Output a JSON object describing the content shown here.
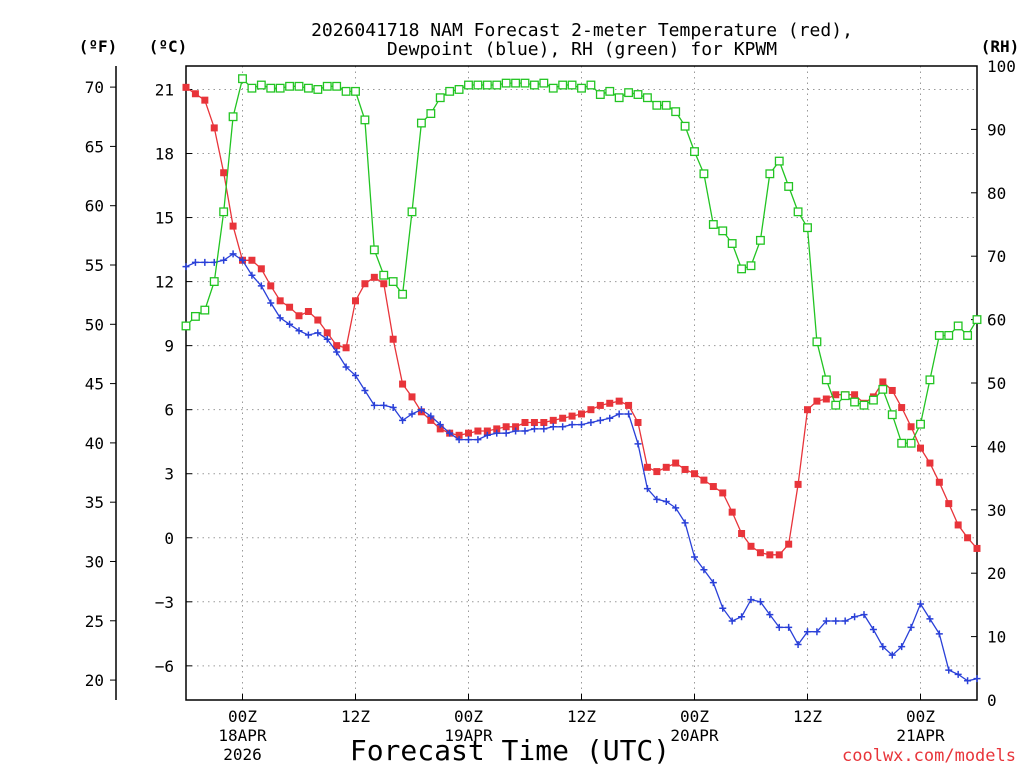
{
  "chart_data": {
    "type": "line",
    "title_line1": "2026041718 NAM Forecast 2-meter Temperature (red),",
    "title_line2": "Dewpoint (blue), RH (green) for KPWM",
    "xlabel": "Forecast Time (UTC)",
    "watermark": "coolwx.com/models",
    "x_hours": [
      0,
      84
    ],
    "x_ticks": [
      {
        "hour": 6,
        "label": "00Z",
        "date": "18APR",
        "year": "2026"
      },
      {
        "hour": 18,
        "label": "12Z"
      },
      {
        "hour": 30,
        "label": "00Z",
        "date": "19APR"
      },
      {
        "hour": 42,
        "label": "12Z"
      },
      {
        "hour": 54,
        "label": "00Z",
        "date": "20APR"
      },
      {
        "hour": 66,
        "label": "12Z"
      },
      {
        "hour": 78,
        "label": "00Z",
        "date": "21APR"
      }
    ],
    "ylim_c": [
      -7.6,
      22.1
    ],
    "yticks_c": [
      "21",
      "18",
      "15",
      "12",
      "9",
      "6",
      "3",
      "0",
      "−3",
      "−6"
    ],
    "yticks_c_values": [
      21,
      18,
      15,
      12,
      9,
      6,
      3,
      0,
      -3,
      -6
    ],
    "yticks_f": [
      "70",
      "65",
      "60",
      "55",
      "50",
      "45",
      "40",
      "35",
      "30",
      "25",
      "20"
    ],
    "yticks_f_values": [
      70,
      65,
      60,
      55,
      50,
      45,
      40,
      35,
      30,
      25,
      20
    ],
    "ylim_rh": [
      0,
      100
    ],
    "yticks_rh": [
      "100",
      "90",
      "80",
      "70",
      "60",
      "50",
      "40",
      "30",
      "20",
      "10",
      "0"
    ],
    "yticks_rh_values": [
      100,
      90,
      80,
      70,
      60,
      50,
      40,
      30,
      20,
      10,
      0
    ],
    "unit_f": "(ºF)",
    "unit_c": "(ºC)",
    "unit_rh": "(RH)",
    "colors": {
      "temperature": "#e8343a",
      "dewpoint": "#2a40d8",
      "rh": "#22c422",
      "grid": "#9a9a9a"
    },
    "series": [
      {
        "name": "Temperature (°C)",
        "key": "temperature",
        "marker": "filled-square",
        "axis": "c",
        "x": [
          0,
          1,
          2,
          3,
          4,
          5,
          6,
          7,
          8,
          9,
          10,
          11,
          12,
          13,
          14,
          15,
          16,
          17,
          18,
          19,
          20,
          21,
          22,
          23,
          24,
          25,
          26,
          27,
          28,
          29,
          30,
          31,
          32,
          33,
          34,
          35,
          36,
          37,
          38,
          39,
          40,
          41,
          42,
          43,
          44,
          45,
          46,
          47,
          48,
          49,
          50,
          51,
          52,
          53,
          54,
          55,
          56,
          57,
          58,
          59,
          60,
          61,
          62,
          63,
          64,
          65,
          66,
          67,
          68,
          69,
          70,
          71,
          72,
          73,
          74,
          75,
          76,
          77,
          78,
          79,
          80,
          81,
          82,
          83,
          84
        ],
        "values": [
          21.1,
          20.8,
          20.5,
          19.2,
          17.1,
          14.6,
          13.0,
          13.0,
          12.6,
          11.8,
          11.1,
          10.8,
          10.4,
          10.6,
          10.2,
          9.6,
          9.0,
          8.9,
          11.1,
          11.9,
          12.2,
          11.9,
          9.3,
          7.2,
          6.6,
          5.9,
          5.5,
          5.1,
          4.9,
          4.8,
          4.9,
          5.0,
          5.0,
          5.1,
          5.2,
          5.2,
          5.4,
          5.4,
          5.4,
          5.5,
          5.6,
          5.7,
          5.8,
          6.0,
          6.2,
          6.3,
          6.4,
          6.2,
          5.4,
          3.3,
          3.1,
          3.3,
          3.5,
          3.2,
          3.0,
          2.7,
          2.4,
          2.1,
          1.2,
          0.2,
          -0.4,
          -0.7,
          -0.8,
          -0.8,
          -0.3,
          2.5,
          6.0,
          6.4,
          6.5,
          6.7,
          6.7,
          6.7,
          6.3,
          6.6,
          7.3,
          6.9,
          6.1,
          5.2,
          4.2,
          3.5,
          2.6,
          1.6,
          0.6,
          0.0,
          -0.5
        ]
      },
      {
        "name": "Dewpoint (°C)",
        "key": "dewpoint",
        "marker": "plus",
        "axis": "c",
        "x": [
          0,
          1,
          2,
          3,
          4,
          5,
          6,
          7,
          8,
          9,
          10,
          11,
          12,
          13,
          14,
          15,
          16,
          17,
          18,
          19,
          20,
          21,
          22,
          23,
          24,
          25,
          26,
          27,
          28,
          29,
          30,
          31,
          32,
          33,
          34,
          35,
          36,
          37,
          38,
          39,
          40,
          41,
          42,
          43,
          44,
          45,
          46,
          47,
          48,
          49,
          50,
          51,
          52,
          53,
          54,
          55,
          56,
          57,
          58,
          59,
          60,
          61,
          62,
          63,
          64,
          65,
          66,
          67,
          68,
          69,
          70,
          71,
          72,
          73,
          74,
          75,
          76,
          77,
          78,
          79,
          80,
          81,
          82,
          83,
          84
        ],
        "values": [
          12.7,
          12.9,
          12.9,
          12.9,
          13.0,
          13.3,
          13.0,
          12.3,
          11.8,
          11.0,
          10.3,
          10.0,
          9.7,
          9.5,
          9.6,
          9.3,
          8.7,
          8.0,
          7.6,
          6.9,
          6.2,
          6.2,
          6.1,
          5.5,
          5.8,
          6.0,
          5.7,
          5.3,
          4.9,
          4.6,
          4.6,
          4.6,
          4.8,
          4.9,
          4.9,
          5.0,
          5.0,
          5.1,
          5.1,
          5.2,
          5.2,
          5.3,
          5.3,
          5.4,
          5.5,
          5.6,
          5.8,
          5.8,
          4.4,
          2.3,
          1.8,
          1.7,
          1.4,
          0.7,
          -0.9,
          -1.5,
          -2.1,
          -3.3,
          -3.9,
          -3.7,
          -2.9,
          -3.0,
          -3.6,
          -4.2,
          -4.2,
          -5.0,
          -4.4,
          -4.4,
          -3.9,
          -3.9,
          -3.9,
          -3.7,
          -3.6,
          -4.3,
          -5.1,
          -5.5,
          -5.1,
          -4.2,
          -3.1,
          -3.8,
          -4.5,
          -6.2,
          -6.4,
          -6.7,
          -6.6
        ]
      },
      {
        "name": "RH (%)",
        "key": "rh",
        "marker": "open-square",
        "axis": "rh",
        "x": [
          0,
          1,
          2,
          3,
          4,
          5,
          6,
          7,
          8,
          9,
          10,
          11,
          12,
          13,
          14,
          15,
          16,
          17,
          18,
          19,
          20,
          21,
          22,
          23,
          24,
          25,
          26,
          27,
          28,
          29,
          30,
          31,
          32,
          33,
          34,
          35,
          36,
          37,
          38,
          39,
          40,
          41,
          42,
          43,
          44,
          45,
          46,
          47,
          48,
          49,
          50,
          51,
          52,
          53,
          54,
          55,
          56,
          57,
          58,
          59,
          60,
          61,
          62,
          63,
          64,
          65,
          66,
          67,
          68,
          69,
          70,
          71,
          72,
          73,
          74,
          75,
          76,
          77,
          78,
          79,
          80,
          81,
          82,
          83,
          84
        ],
        "values": [
          59,
          60.5,
          61.5,
          66,
          77,
          92,
          98,
          96.5,
          97,
          96.5,
          96.5,
          96.8,
          96.8,
          96.5,
          96.3,
          96.8,
          96.8,
          96,
          96,
          91.5,
          71,
          67,
          66,
          64,
          77,
          91,
          92.5,
          95,
          96,
          96.3,
          97,
          97,
          97,
          97,
          97.3,
          97.3,
          97.3,
          97,
          97.3,
          96.5,
          97,
          97,
          96.5,
          97,
          95.5,
          96,
          95,
          95.8,
          95.5,
          95,
          93.8,
          93.8,
          92.8,
          90.5,
          86.5,
          83,
          75,
          74,
          72,
          68,
          68.5,
          72.5,
          83,
          85,
          81,
          77,
          74.5,
          56.5,
          50.5,
          46.5,
          48,
          47,
          46.5,
          47.3,
          49,
          45,
          40.5,
          40.5,
          43.5,
          50.5,
          57.5,
          57.5,
          59,
          57.5,
          60
        ]
      }
    ]
  }
}
